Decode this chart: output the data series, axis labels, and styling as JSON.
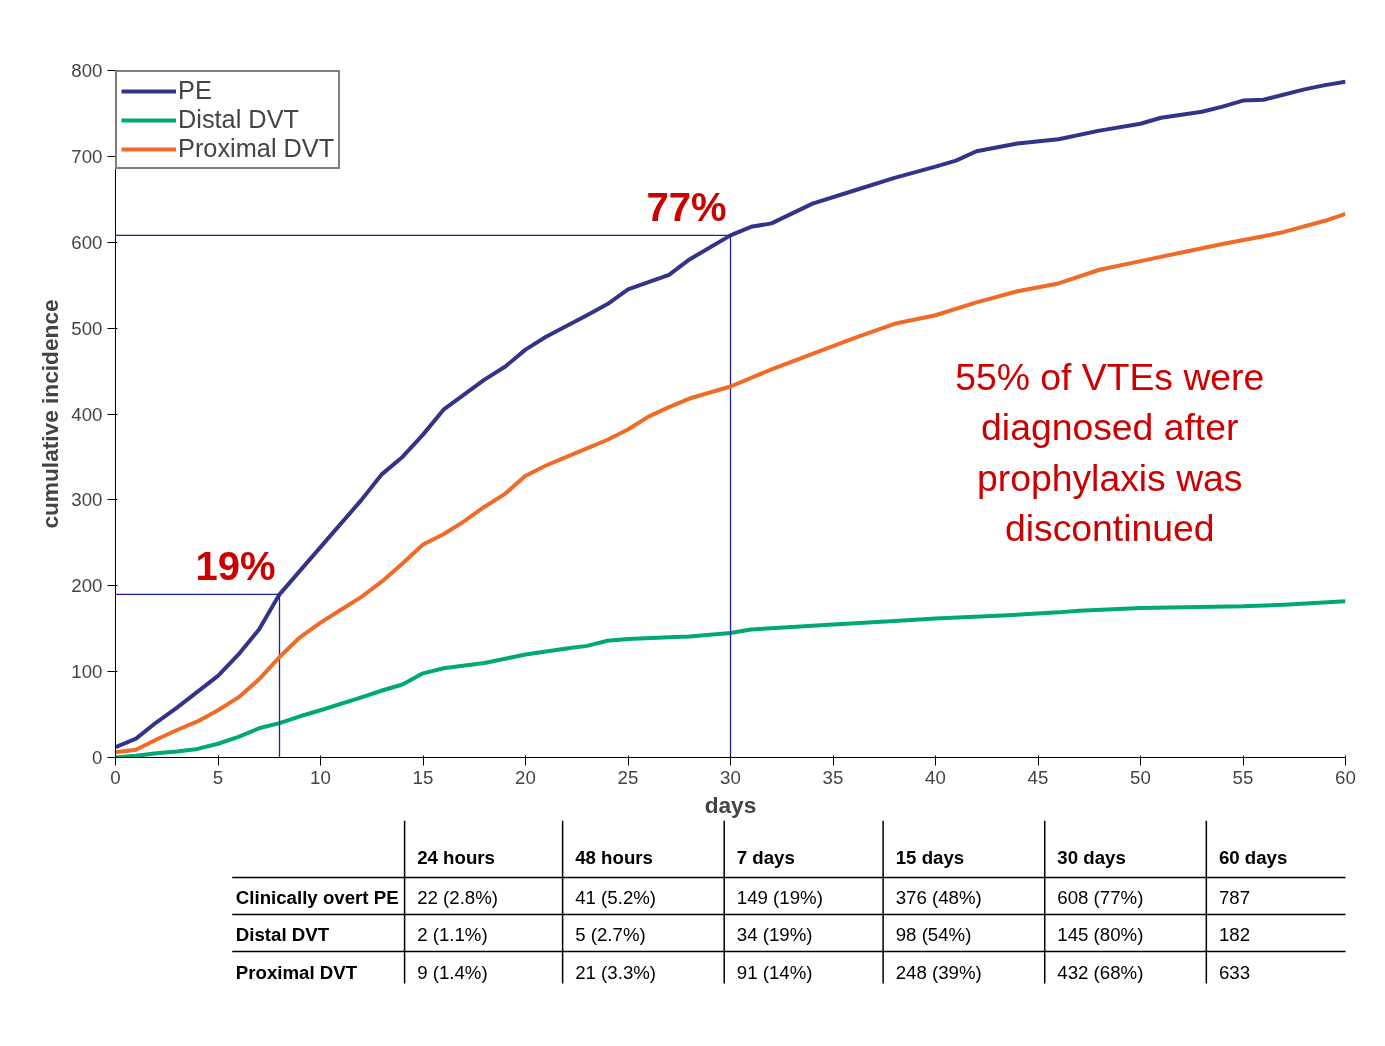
{
  "chart_data": {
    "type": "line",
    "xlabel": "days",
    "ylabel": "cumulative incidence",
    "xlim": [
      0,
      60
    ],
    "xticks": [
      0,
      5,
      10,
      15,
      20,
      25,
      30,
      35,
      40,
      45,
      50,
      55,
      60
    ],
    "ylim": [
      0,
      800
    ],
    "yticks": [
      0,
      100,
      200,
      300,
      400,
      500,
      600,
      700,
      800
    ],
    "grid": false,
    "legend": "top left",
    "line_style": "solid",
    "marker": "none",
    "series": [
      {
        "name": "PE",
        "color": "#33338a",
        "x": [
          0,
          1,
          2,
          3,
          5,
          6,
          7,
          8,
          10,
          12,
          13,
          14,
          15,
          16,
          18,
          19,
          20,
          21,
          23,
          24,
          25,
          27,
          28,
          30,
          31,
          32,
          34,
          36,
          38,
          40,
          41,
          42,
          44,
          46,
          48,
          50,
          51,
          53,
          54,
          55,
          56,
          58,
          59,
          60
        ],
        "values": [
          12,
          22,
          41,
          58,
          95,
          120,
          149,
          190,
          245,
          300,
          330,
          350,
          376,
          405,
          440,
          455,
          475,
          490,
          515,
          528,
          545,
          562,
          580,
          608,
          618,
          622,
          645,
          660,
          675,
          688,
          695,
          706,
          715,
          720,
          730,
          738,
          745,
          752,
          758,
          765,
          766,
          778,
          783,
          787
        ]
      },
      {
        "name": "Distal DVT",
        "color": "#00a878",
        "x": [
          0,
          1,
          2,
          3,
          4,
          5,
          6,
          7,
          8,
          9,
          10,
          12,
          13,
          14,
          15,
          16,
          18,
          19,
          20,
          22,
          23,
          24,
          25,
          27,
          28,
          30,
          31,
          33,
          35,
          38,
          40,
          43,
          46,
          47,
          50,
          55,
          57,
          60
        ],
        "values": [
          0,
          2,
          5,
          7,
          10,
          16,
          24,
          34,
          40,
          48,
          55,
          70,
          78,
          85,
          98,
          104,
          110,
          115,
          120,
          127,
          130,
          136,
          138,
          140,
          141,
          145,
          149,
          152,
          155,
          159,
          162,
          165,
          169,
          171,
          174,
          176,
          178,
          182
        ]
      },
      {
        "color": "#2020a0",
        "x": [
          0,
          8,
          8
        ],
        "values": [
          190,
          190,
          0
        ]
      },
      {
        "color": "#2020a0",
        "x": [
          0,
          30,
          30
        ],
        "values": [
          608,
          608,
          0
        ]
      },
      {
        "name": "Proximal DVT",
        "color": "#f06a28",
        "x": [
          0,
          1,
          2,
          3,
          4,
          5,
          6,
          7,
          8,
          9,
          10,
          11,
          12,
          13,
          14,
          15,
          16,
          17,
          18,
          19,
          20,
          21,
          22,
          23,
          24,
          25,
          26,
          27,
          28,
          30,
          32,
          34,
          36,
          38,
          40,
          42,
          44,
          46,
          48,
          50,
          52,
          54,
          56,
          57,
          59,
          60
        ],
        "values": [
          6,
          9,
          21,
          32,
          42,
          55,
          70,
          91,
          117,
          140,
          157,
          172,
          187,
          205,
          226,
          248,
          260,
          275,
          292,
          307,
          328,
          340,
          350,
          360,
          370,
          382,
          397,
          408,
          418,
          432,
          452,
          470,
          488,
          505,
          515,
          530,
          543,
          552,
          568,
          578,
          588,
          598,
          607,
          612,
          625,
          633
        ]
      }
    ],
    "annotations": [
      {
        "text": "19%",
        "x": 8,
        "y": 190
      },
      {
        "text": "77%",
        "x": 30,
        "y": 608
      },
      "55% of VTEs were\ndiagnosed after\nprophylaxis was\ndiscontinued",
      "24 hours",
      "48 hours",
      "7 days",
      "15 days",
      "30 days",
      "60 days",
      "Clinically overt PE",
      "22 (2.8%)",
      "41 (5.2%)",
      "149 (19%)",
      "376 (48%)",
      "608 (77%)",
      "787",
      "Distal DVT",
      "2 (1.1%)",
      "5 (2.7%)",
      "34 (19%)",
      "98 (54%)",
      "145 (80%)",
      "182",
      "Proximal DVT",
      "9 (1.4%)",
      "21 (3.3%)",
      "91 (14%)",
      "248 (39%)",
      "432 (68%)",
      "633"
    ]
  }
}
